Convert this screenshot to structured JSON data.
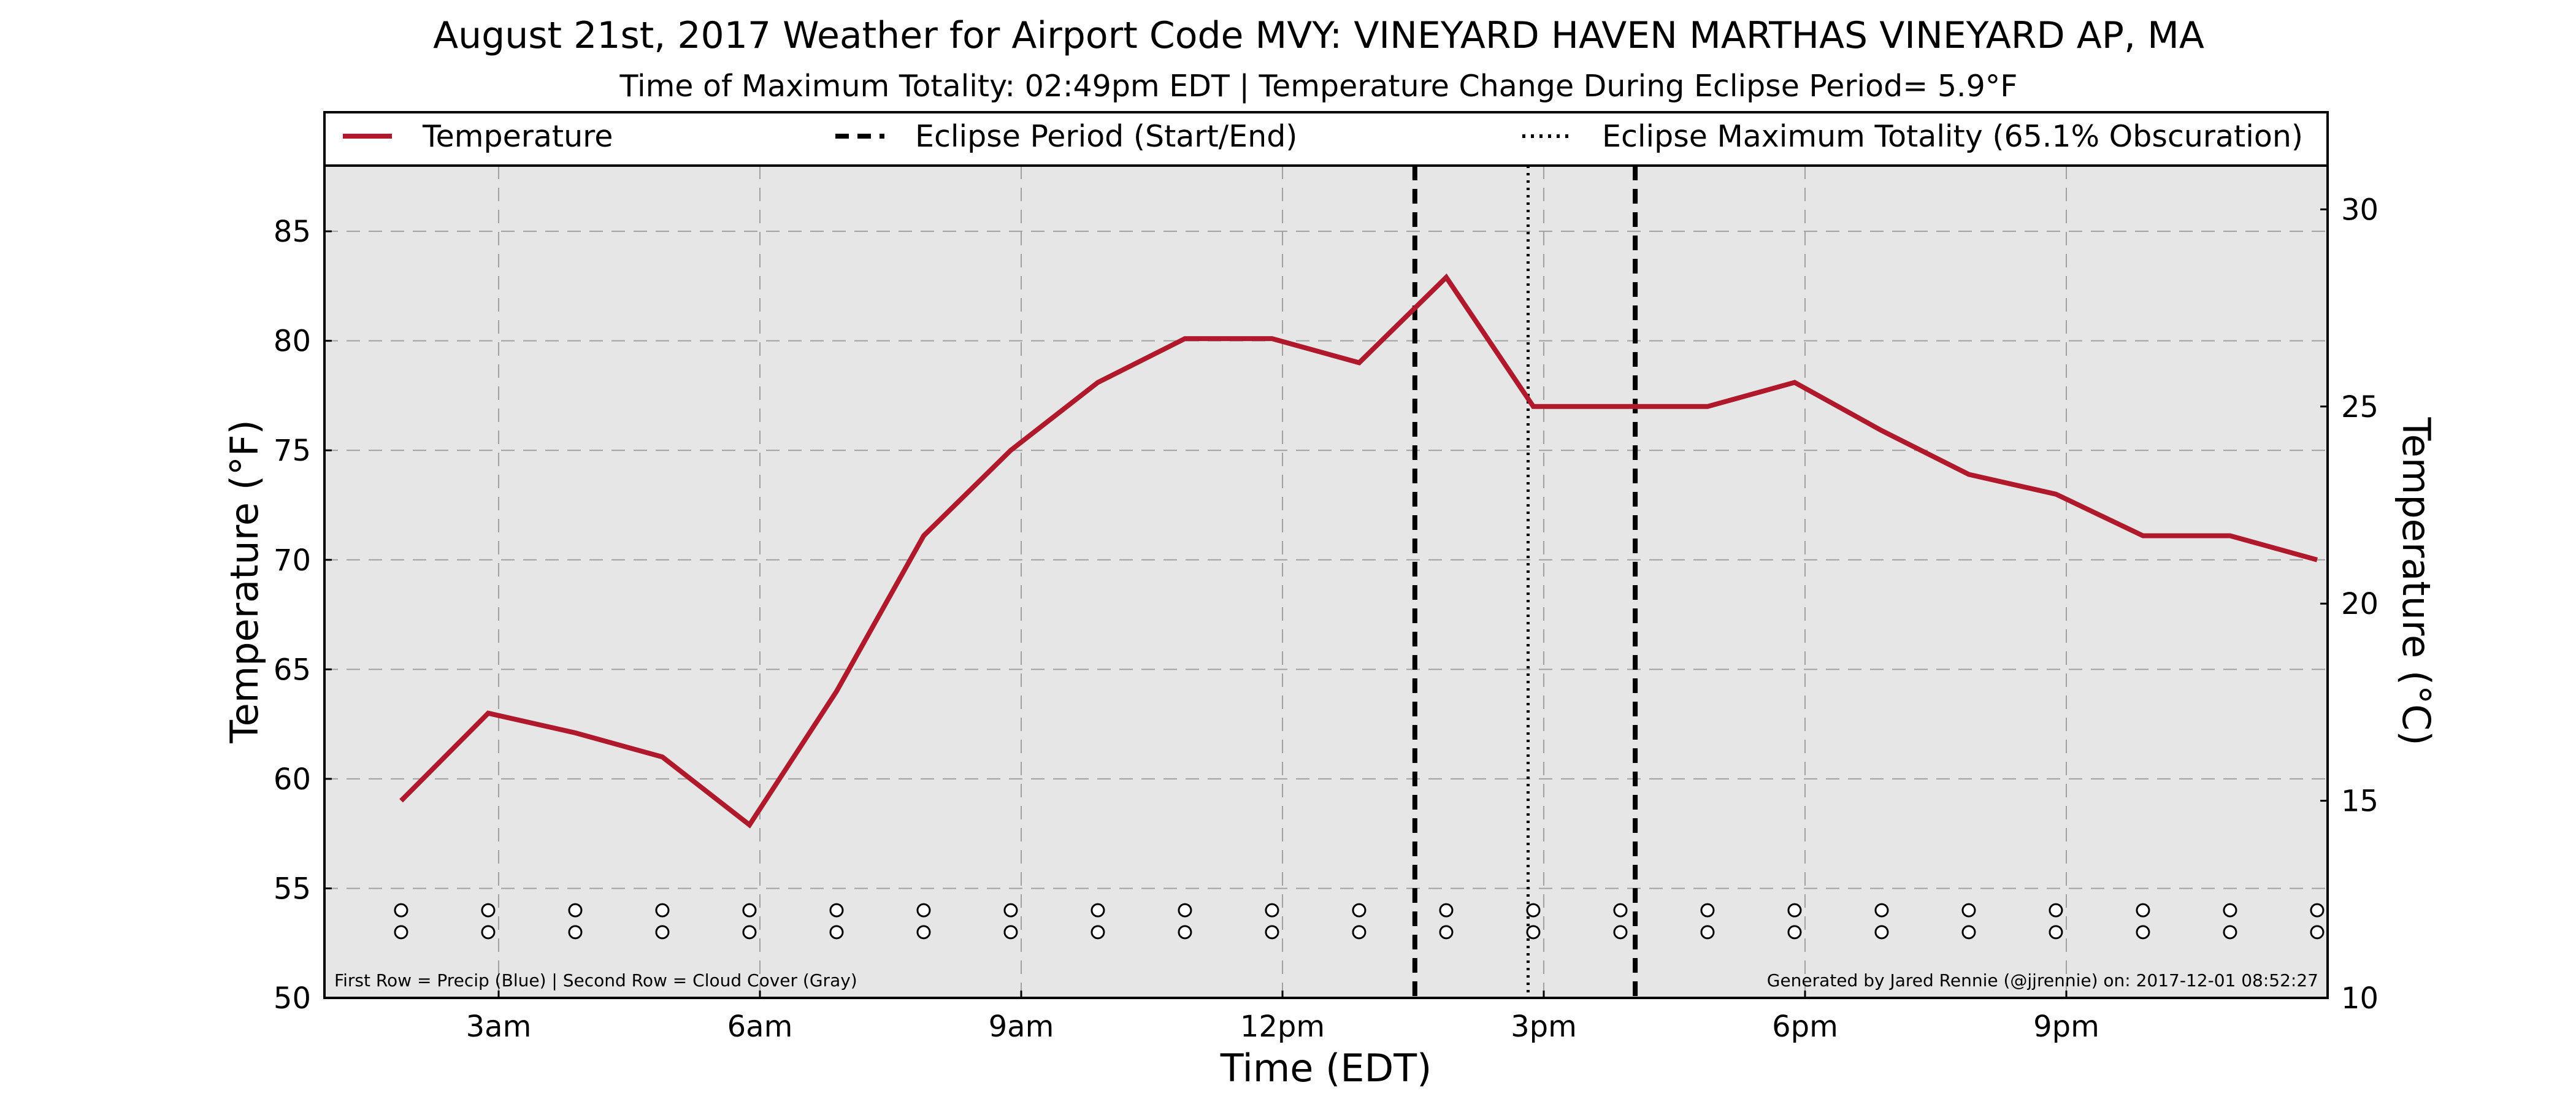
{
  "chart_data": {
    "type": "line",
    "title": "August 21st, 2017 Weather for Airport Code MVY: VINEYARD HAVEN MARTHAS VINEYARD AP, MA",
    "subtitle": "Time of Maximum Totality: 02:49pm EDT | Temperature Change During Eclipse Period= 5.9°F",
    "xlabel": "Time (EDT)",
    "ylabel": "Temperature (°F)",
    "ylabel_right": "Temperature (°C)",
    "xlim": [
      1.0,
      24.0
    ],
    "ylim": [
      50,
      88
    ],
    "ylim_right_celsius": [
      10,
      31.11
    ],
    "x_ticks": [
      {
        "x": 3,
        "label": "3am"
      },
      {
        "x": 6,
        "label": "6am"
      },
      {
        "x": 9,
        "label": "9am"
      },
      {
        "x": 12,
        "label": "12pm"
      },
      {
        "x": 15,
        "label": "3pm"
      },
      {
        "x": 18,
        "label": "6pm"
      },
      {
        "x": 21,
        "label": "9pm"
      }
    ],
    "y_ticks": [
      50,
      55,
      60,
      65,
      70,
      75,
      80,
      85
    ],
    "y_ticks_right": [
      10,
      15,
      20,
      25,
      30
    ],
    "grid": true,
    "legend_position": "top",
    "legend": [
      {
        "label": "Temperature",
        "style": "solid",
        "color": "#b0182c"
      },
      {
        "label": "Eclipse Period (Start/End)",
        "style": "dashed",
        "color": "#000000"
      },
      {
        "label": "Eclipse Maximum Totality (65.1% Obscuration)",
        "style": "dotted",
        "color": "#000000"
      }
    ],
    "series": [
      {
        "name": "Temperature",
        "color": "#b0182c",
        "x": [
          1.88,
          2.88,
          3.88,
          4.88,
          5.88,
          6.88,
          7.88,
          8.88,
          9.88,
          10.88,
          11.88,
          12.88,
          13.88,
          14.88,
          15.88,
          16.88,
          17.88,
          18.88,
          19.88,
          20.88,
          21.88,
          22.88,
          23.88
        ],
        "y": [
          59,
          63,
          62.1,
          61,
          57.9,
          64,
          71.1,
          75,
          78.1,
          80.1,
          80.1,
          79,
          82.9,
          77,
          77,
          77,
          78.1,
          75.9,
          73.9,
          73,
          71.1,
          71.1,
          70
        ]
      }
    ],
    "eclipse_start": 13.52,
    "eclipse_end": 16.05,
    "eclipse_max": 14.82,
    "marker_rows": {
      "x": [
        1.88,
        2.88,
        3.88,
        4.88,
        5.88,
        6.88,
        7.88,
        8.88,
        9.88,
        10.88,
        11.88,
        12.88,
        13.88,
        14.88,
        15.88,
        16.88,
        17.88,
        18.88,
        19.88,
        20.88,
        21.88,
        22.88,
        23.88
      ],
      "precip_y": 54,
      "cloud_y": 53
    },
    "footnote_left": "First Row = Precip (Blue) | Second Row = Cloud Cover (Gray)",
    "footnote_right": "Generated by Jared Rennie (@jjrennie) on: 2017-12-01 08:52:27",
    "colors": {
      "plot_background": "#e6e6e6",
      "temperature_line": "#b0182c",
      "grid": "#a0a0a0"
    }
  }
}
